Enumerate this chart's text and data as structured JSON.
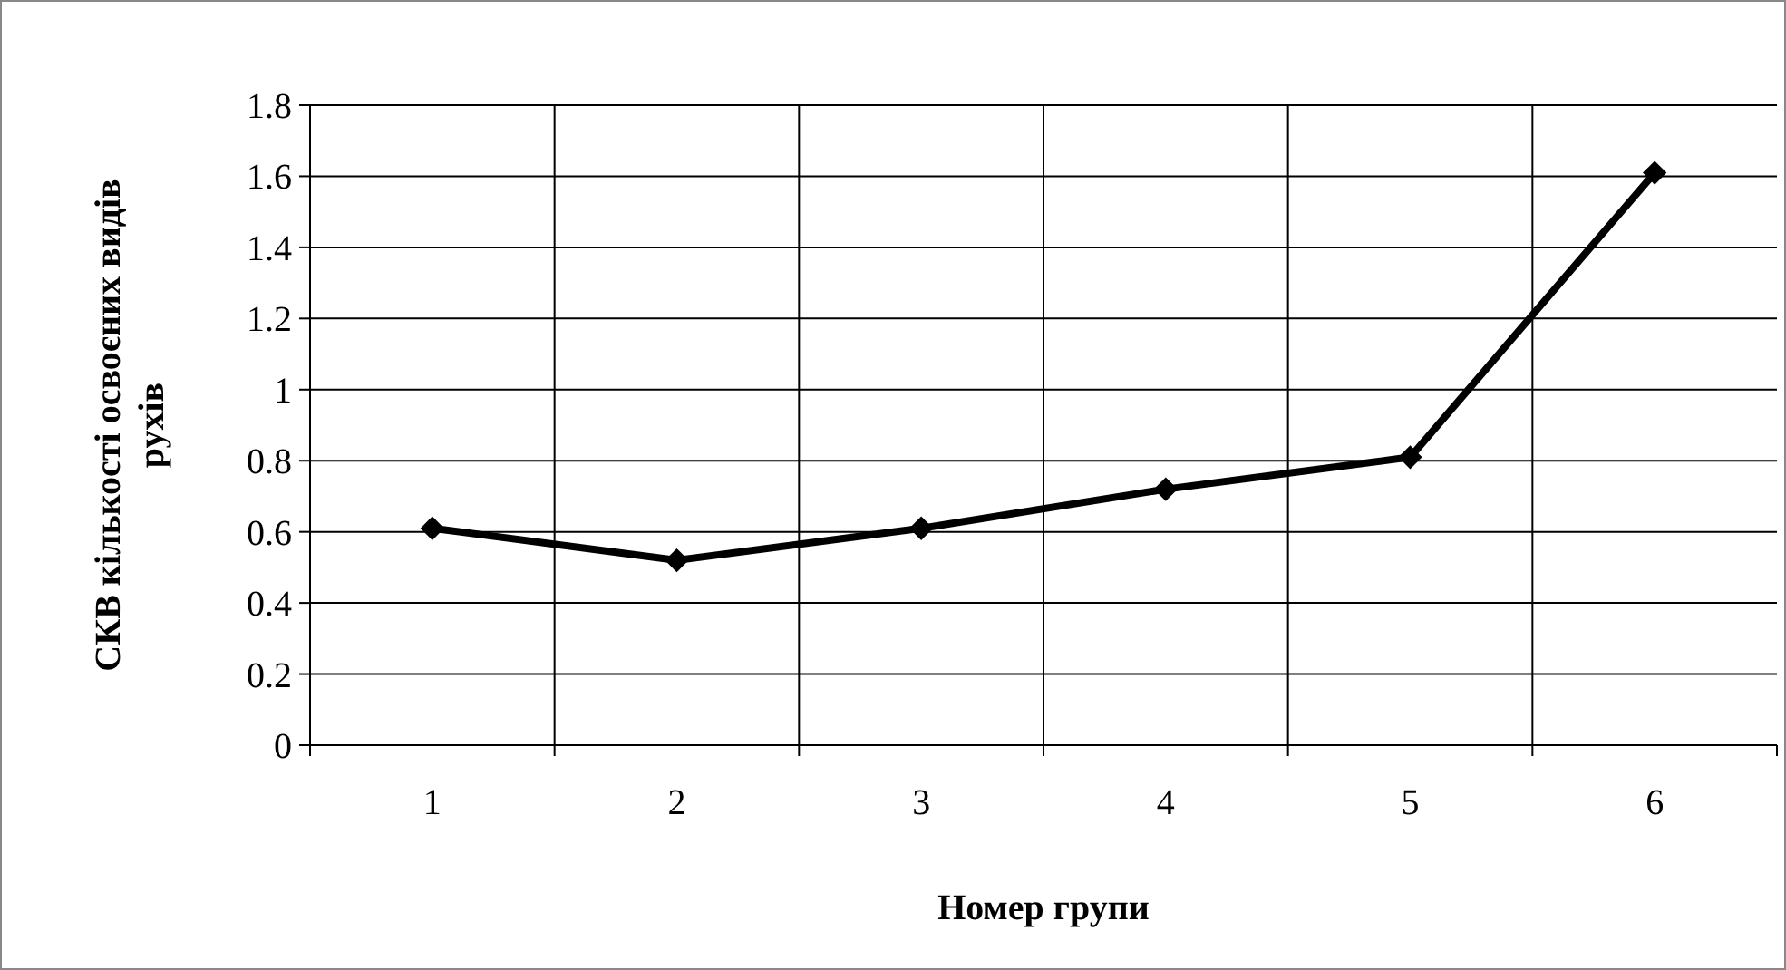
{
  "chart_data": {
    "type": "line",
    "xlabel": "Номер групи",
    "ylabel": "СКВ кількості освоєних видів рухів",
    "categories": [
      "1",
      "2",
      "3",
      "4",
      "5",
      "6"
    ],
    "series": [
      {
        "color": "#000000",
        "values": [
          0.61,
          0.52,
          0.61,
          0.72,
          0.81,
          1.61
        ]
      }
    ],
    "ylim": [
      0,
      1.8
    ],
    "yticks": [
      0,
      0.2,
      0.4,
      0.6,
      0.8,
      1,
      1.2,
      1.4,
      1.6,
      1.8
    ],
    "grid": true,
    "marker": "diamond",
    "line_style": "solid"
  }
}
